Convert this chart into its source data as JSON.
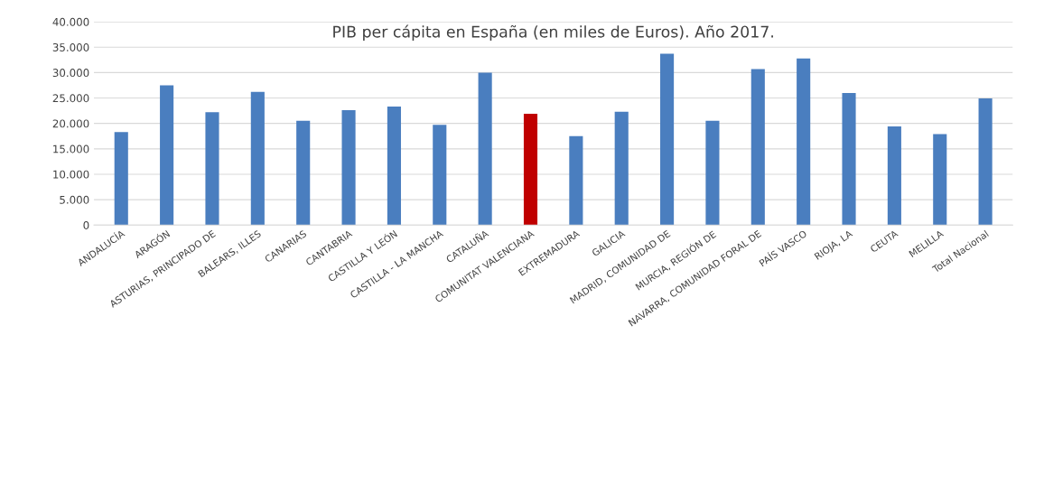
{
  "chart_data": {
    "type": "bar",
    "title": "PIB per cápita en España (en miles de Euros). Año 2017.",
    "categories": [
      "ANDALUCÍA",
      "ARAGÓN",
      "ASTURIAS, PRINCIPADO DE",
      "BALEARS, ILLES",
      "CANARIAS",
      "CANTABRIA",
      "CASTILLA Y LEÓN",
      "CASTILLA - LA MANCHA",
      "CATALUÑA",
      "COMUNITAT VALENCIANA",
      "EXTREMADURA",
      "GALICIA",
      "MADRID, COMUNIDAD DE",
      "MURCIA, REGIÓN DE",
      "NAVARRA, COMUNIDAD FORAL DE",
      "PAÍS VASCO",
      "RIOJA, LA",
      "CEUTA",
      "MELILLA",
      "Total Nacional"
    ],
    "values": [
      18300,
      27500,
      22200,
      26200,
      20500,
      22600,
      23300,
      19700,
      30000,
      21900,
      17500,
      22300,
      33700,
      20500,
      30700,
      32800,
      26000,
      19400,
      17900,
      24900
    ],
    "colors": [
      "#4a7ebf",
      "#4a7ebf",
      "#4a7ebf",
      "#4a7ebf",
      "#4a7ebf",
      "#4a7ebf",
      "#4a7ebf",
      "#4a7ebf",
      "#4a7ebf",
      "#c00000",
      "#4a7ebf",
      "#4a7ebf",
      "#4a7ebf",
      "#4a7ebf",
      "#4a7ebf",
      "#4a7ebf",
      "#4a7ebf",
      "#4a7ebf",
      "#4a7ebf",
      "#4a7ebf"
    ],
    "ylim": [
      0,
      40000
    ],
    "yticks": [
      {
        "value": 0,
        "label": "0"
      },
      {
        "value": 5000,
        "label": "5.000"
      },
      {
        "value": 10000,
        "label": "10.000"
      },
      {
        "value": 15000,
        "label": "15.000"
      },
      {
        "value": 20000,
        "label": "20.000"
      },
      {
        "value": 25000,
        "label": "25.000"
      },
      {
        "value": 30000,
        "label": "30.000"
      },
      {
        "value": 35000,
        "label": "35.000"
      },
      {
        "value": 40000,
        "label": "40.000"
      }
    ],
    "grid": "y",
    "legend": false
  }
}
